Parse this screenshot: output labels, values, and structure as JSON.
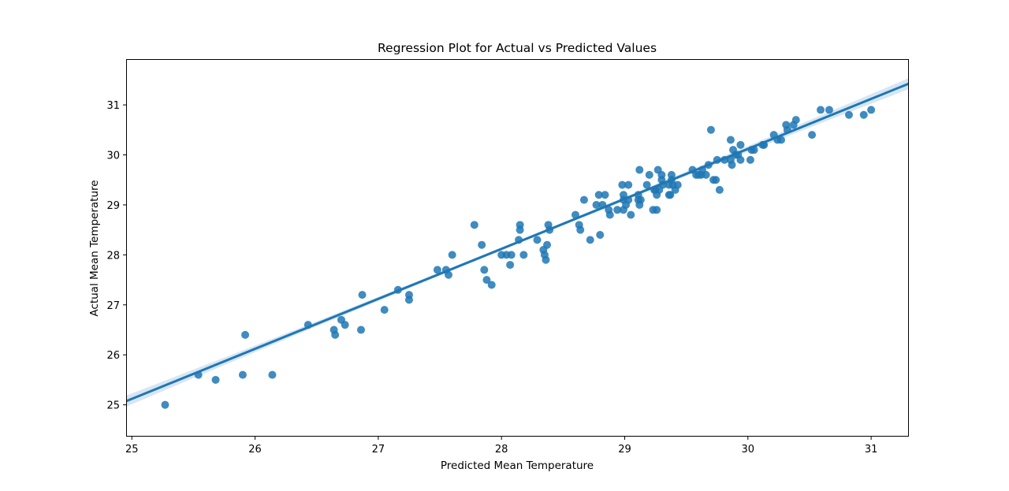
{
  "chart_data": {
    "type": "scatter",
    "title": "Regression Plot for Actual vs Predicted Values",
    "xlabel": "Predicted Mean Temperature",
    "ylabel": "Actual Mean Temperature",
    "xlim": [
      24.96,
      31.3
    ],
    "ylim": [
      24.38,
      31.9
    ],
    "xticks": [
      25,
      26,
      27,
      28,
      29,
      30,
      31
    ],
    "yticks": [
      25,
      26,
      27,
      28,
      29,
      30,
      31
    ],
    "grid": false,
    "colors": {
      "points": "#1f77b4",
      "line": "#1f77b4",
      "band": "#a6c7e5"
    },
    "regression": {
      "slope": 1.0,
      "intercept": 0.12,
      "ci_half_width_edge": 0.11,
      "ci_half_width_center": 0.03
    },
    "points": [
      [
        25.27,
        25.0
      ],
      [
        25.54,
        25.6
      ],
      [
        25.68,
        25.5
      ],
      [
        25.9,
        25.6
      ],
      [
        25.92,
        26.4
      ],
      [
        26.14,
        25.6
      ],
      [
        26.43,
        26.6
      ],
      [
        26.64,
        26.5
      ],
      [
        26.65,
        26.4
      ],
      [
        26.7,
        26.7
      ],
      [
        26.73,
        26.6
      ],
      [
        26.86,
        26.5
      ],
      [
        26.87,
        27.2
      ],
      [
        27.05,
        26.9
      ],
      [
        27.16,
        27.3
      ],
      [
        27.25,
        27.2
      ],
      [
        27.25,
        27.1
      ],
      [
        27.48,
        27.7
      ],
      [
        27.55,
        27.7
      ],
      [
        27.57,
        27.6
      ],
      [
        27.6,
        28.0
      ],
      [
        27.78,
        28.6
      ],
      [
        27.84,
        28.2
      ],
      [
        27.86,
        27.7
      ],
      [
        27.88,
        27.5
      ],
      [
        27.92,
        27.4
      ],
      [
        28.0,
        28.0
      ],
      [
        28.04,
        28.0
      ],
      [
        28.07,
        27.8
      ],
      [
        28.08,
        28.0
      ],
      [
        28.14,
        28.3
      ],
      [
        28.15,
        28.6
      ],
      [
        28.15,
        28.5
      ],
      [
        28.18,
        28.0
      ],
      [
        28.29,
        28.3
      ],
      [
        28.34,
        28.1
      ],
      [
        28.35,
        28.0
      ],
      [
        28.36,
        27.9
      ],
      [
        28.37,
        28.2
      ],
      [
        28.38,
        28.6
      ],
      [
        28.39,
        28.5
      ],
      [
        28.6,
        28.8
      ],
      [
        28.63,
        28.6
      ],
      [
        28.64,
        28.5
      ],
      [
        28.67,
        29.1
      ],
      [
        28.72,
        28.3
      ],
      [
        28.77,
        29.0
      ],
      [
        28.79,
        29.2
      ],
      [
        28.8,
        28.4
      ],
      [
        28.82,
        29.0
      ],
      [
        28.84,
        29.2
      ],
      [
        28.87,
        28.9
      ],
      [
        28.88,
        28.8
      ],
      [
        28.94,
        28.9
      ],
      [
        28.98,
        29.4
      ],
      [
        28.99,
        29.1
      ],
      [
        28.99,
        29.2
      ],
      [
        28.99,
        28.9
      ],
      [
        29.01,
        29.0
      ],
      [
        29.03,
        29.1
      ],
      [
        29.03,
        29.4
      ],
      [
        29.05,
        28.8
      ],
      [
        29.11,
        29.2
      ],
      [
        29.11,
        29.1
      ],
      [
        29.12,
        29.0
      ],
      [
        29.12,
        29.7
      ],
      [
        29.13,
        29.1
      ],
      [
        29.18,
        29.4
      ],
      [
        29.2,
        29.6
      ],
      [
        29.23,
        28.9
      ],
      [
        29.24,
        29.3
      ],
      [
        29.25,
        29.3
      ],
      [
        29.26,
        28.9
      ],
      [
        29.26,
        29.2
      ],
      [
        29.27,
        29.7
      ],
      [
        29.28,
        29.3
      ],
      [
        29.3,
        29.5
      ],
      [
        29.3,
        29.6
      ],
      [
        29.31,
        29.4
      ],
      [
        29.36,
        29.4
      ],
      [
        29.36,
        29.2
      ],
      [
        29.37,
        29.2
      ],
      [
        29.38,
        29.6
      ],
      [
        29.38,
        29.5
      ],
      [
        29.39,
        29.4
      ],
      [
        29.41,
        29.3
      ],
      [
        29.43,
        29.4
      ],
      [
        29.55,
        29.7
      ],
      [
        29.58,
        29.6
      ],
      [
        29.6,
        29.6
      ],
      [
        29.62,
        29.6
      ],
      [
        29.63,
        29.7
      ],
      [
        29.66,
        29.6
      ],
      [
        29.68,
        29.8
      ],
      [
        29.7,
        30.5
      ],
      [
        29.72,
        29.5
      ],
      [
        29.74,
        29.5
      ],
      [
        29.75,
        29.9
      ],
      [
        29.77,
        29.3
      ],
      [
        29.81,
        29.9
      ],
      [
        29.86,
        30.3
      ],
      [
        29.86,
        29.9
      ],
      [
        29.87,
        29.8
      ],
      [
        29.88,
        30.1
      ],
      [
        29.9,
        30.0
      ],
      [
        29.92,
        30.0
      ],
      [
        29.94,
        29.9
      ],
      [
        29.94,
        30.2
      ],
      [
        30.02,
        29.9
      ],
      [
        30.03,
        30.1
      ],
      [
        30.05,
        30.1
      ],
      [
        30.12,
        30.2
      ],
      [
        30.13,
        30.2
      ],
      [
        30.21,
        30.4
      ],
      [
        30.24,
        30.3
      ],
      [
        30.27,
        30.3
      ],
      [
        30.31,
        30.6
      ],
      [
        30.32,
        30.5
      ],
      [
        30.37,
        30.6
      ],
      [
        30.39,
        30.7
      ],
      [
        30.52,
        30.4
      ],
      [
        30.59,
        30.9
      ],
      [
        30.66,
        30.9
      ],
      [
        30.82,
        30.8
      ],
      [
        30.94,
        30.8
      ],
      [
        31.0,
        30.9
      ]
    ]
  }
}
